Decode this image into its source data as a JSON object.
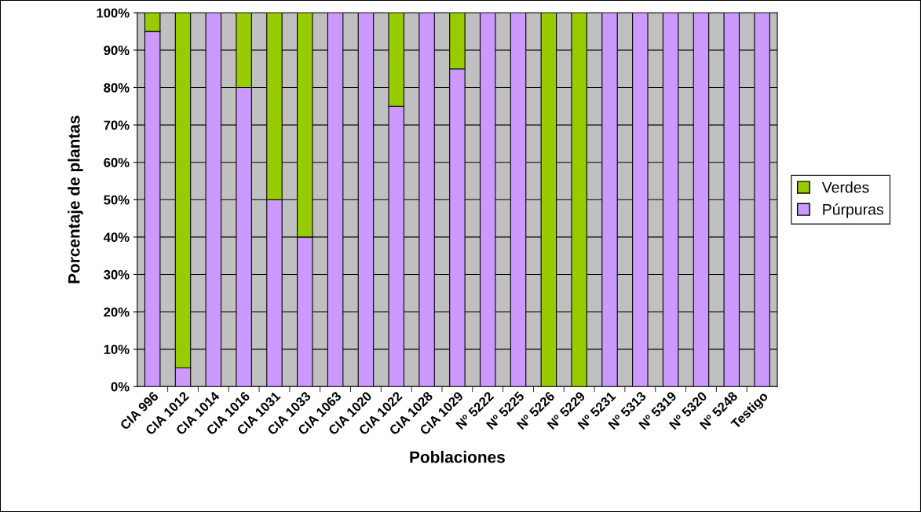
{
  "chart_data": {
    "type": "bar",
    "stacked": true,
    "xlabel": "Poblaciones",
    "ylabel": "Porcentaje de plantas",
    "categories": [
      "CIA 996",
      "CIA 1012",
      "CIA 1014",
      "CIA 1016",
      "CIA 1031",
      "CIA 1033",
      "CIA 1063",
      "CIA 1020",
      "CIA 1022",
      "CIA 1028",
      "CIA 1029",
      "Nº 5222",
      "Nº 5225",
      "Nº 5226",
      "Nº 5229",
      "Nº 5231",
      "Nº 5313",
      "Nº 5319",
      "Nº 5320",
      "Nº 5248",
      "Testigo"
    ],
    "series": [
      {
        "name": "Púrpuras",
        "color": "#cc99ff",
        "values": [
          95,
          5,
          100,
          80,
          50,
          40,
          100,
          100,
          75,
          100,
          85,
          100,
          100,
          0,
          0,
          100,
          100,
          100,
          100,
          100,
          100
        ]
      },
      {
        "name": "Verdes",
        "color": "#99cc00",
        "values": [
          5,
          95,
          0,
          20,
          50,
          60,
          0,
          0,
          25,
          0,
          15,
          0,
          0,
          100,
          100,
          0,
          0,
          0,
          0,
          0,
          0
        ]
      }
    ],
    "ylim": [
      0,
      100
    ],
    "yticks": [
      {
        "value": 0,
        "label": "0%"
      },
      {
        "value": 10,
        "label": "10%"
      },
      {
        "value": 20,
        "label": "20%"
      },
      {
        "value": 30,
        "label": "30%"
      },
      {
        "value": 40,
        "label": "40%"
      },
      {
        "value": 50,
        "label": "50%"
      },
      {
        "value": 60,
        "label": "60%"
      },
      {
        "value": 70,
        "label": "70%"
      },
      {
        "value": 80,
        "label": "80%"
      },
      {
        "value": 90,
        "label": "90%"
      },
      {
        "value": 100,
        "label": "100%"
      }
    ],
    "grid": "y",
    "legend": "right"
  }
}
